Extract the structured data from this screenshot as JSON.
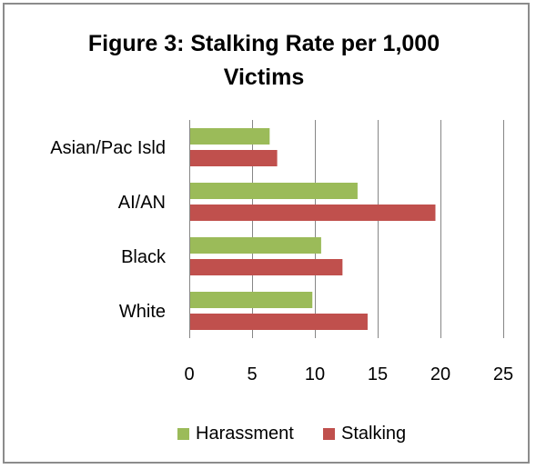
{
  "chart_data": {
    "type": "bar",
    "orientation": "horizontal",
    "title": "Figure 3:  Stalking Rate per 1,000 Victims",
    "categories": [
      "Asian/Pac Isld",
      "AI/AN",
      "Black",
      "White"
    ],
    "series": [
      {
        "name": "Harassment",
        "values": [
          6.4,
          13.4,
          10.5,
          9.8
        ],
        "color": "#9bbb59"
      },
      {
        "name": "Stalking",
        "values": [
          7.0,
          19.6,
          12.2,
          14.2
        ],
        "color": "#c0504d"
      }
    ],
    "xlim": [
      0,
      25
    ],
    "xticks": [
      "0",
      "5",
      "10",
      "15",
      "20",
      "25"
    ],
    "grid": "vertical",
    "legend_position": "bottom"
  },
  "title_line1": "Figure 3:  Stalking Rate per 1,000",
  "title_line2": "Victims"
}
